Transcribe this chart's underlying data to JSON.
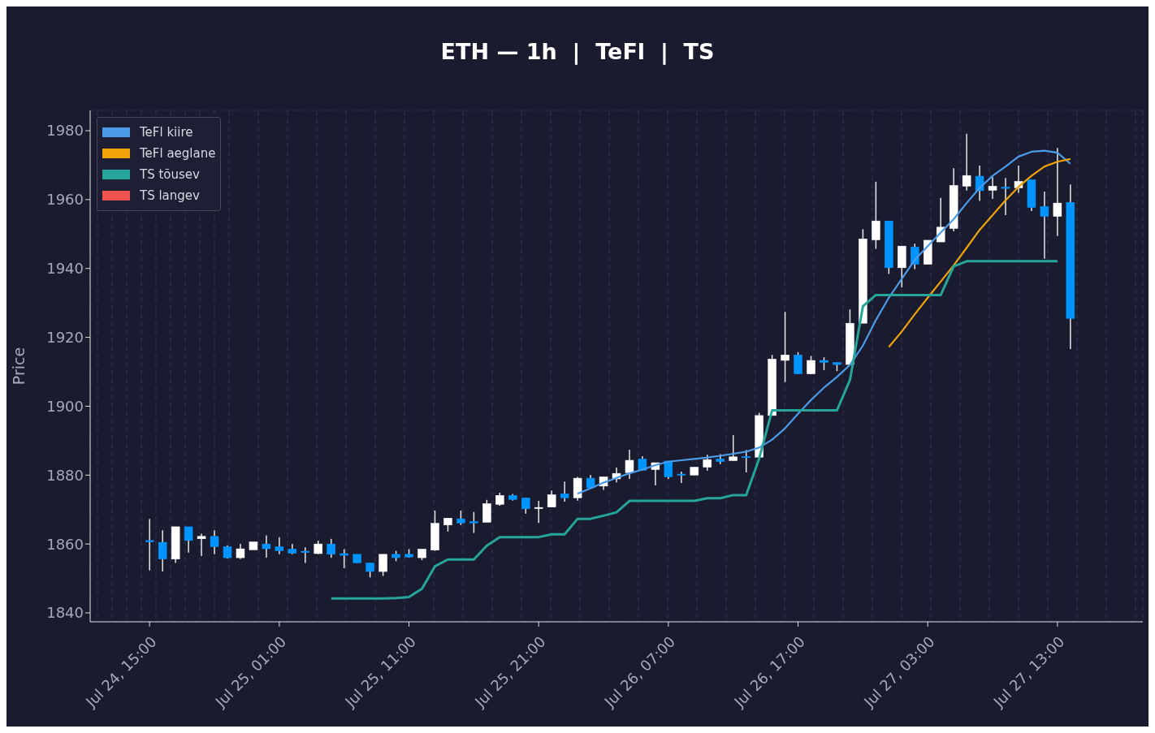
{
  "chart_data": {
    "type": "candlestick",
    "title": "ETH — 1h  |  TeFl  |  TS",
    "ylabel": "Price",
    "x": [
      "--07-24T15:00",
      "--07-24T16:00",
      "--07-24T17:00",
      "--07-24T18:00",
      "--07-24T19:00",
      "--07-24T20:00",
      "--07-24T21:00",
      "--07-24T22:00",
      "--07-24T23:00",
      "--07-25T00:00",
      "--07-25T01:00",
      "--07-25T02:00",
      "--07-25T03:00",
      "--07-25T04:00",
      "--07-25T05:00",
      "--07-25T06:00",
      "--07-25T07:00",
      "--07-25T08:00",
      "--07-25T09:00",
      "--07-25T10:00",
      "--07-25T11:00",
      "--07-25T12:00",
      "--07-25T13:00",
      "--07-25T14:00",
      "--07-25T15:00",
      "--07-25T16:00",
      "--07-25T17:00",
      "--07-25T18:00",
      "--07-25T19:00",
      "--07-25T20:00",
      "--07-25T21:00",
      "--07-25T22:00",
      "--07-25T23:00",
      "--07-26T00:00",
      "--07-26T01:00",
      "--07-26T02:00",
      "--07-26T03:00",
      "--07-26T04:00",
      "--07-26T05:00",
      "--07-26T06:00",
      "--07-26T07:00",
      "--07-26T08:00",
      "--07-26T09:00",
      "--07-26T10:00",
      "--07-26T11:00",
      "--07-26T12:00",
      "--07-26T13:00",
      "--07-26T14:00",
      "--07-26T15:00",
      "--07-26T16:00",
      "--07-26T17:00",
      "--07-26T18:00",
      "--07-26T19:00",
      "--07-26T20:00",
      "--07-26T21:00",
      "--07-26T22:00",
      "--07-26T23:00",
      "--07-27T00:00",
      "--07-27T01:00",
      "--07-27T02:00",
      "--07-27T03:00",
      "--07-27T04:00",
      "--07-27T05:00",
      "--07-27T06:00",
      "--07-27T07:00",
      "--07-27T08:00",
      "--07-27T09:00",
      "--07-27T10:00",
      "--07-27T11:00",
      "--07-27T12:00",
      "--07-27T13:00",
      "--07-27T14:00"
    ],
    "ohlc": [
      [
        1861,
        1867.3,
        1852.3,
        1860.6
      ],
      [
        1860.5,
        1864,
        1852,
        1855.6
      ],
      [
        1855.6,
        1865,
        1854.5,
        1865
      ],
      [
        1865,
        1865,
        1857.5,
        1861
      ],
      [
        1861.5,
        1863,
        1856.5,
        1862.2
      ],
      [
        1862.2,
        1864,
        1857,
        1859.2
      ],
      [
        1859.2,
        1859.6,
        1855.8,
        1856
      ],
      [
        1856,
        1860,
        1855.6,
        1858.6
      ],
      [
        1858.3,
        1860.6,
        1858.3,
        1860.6
      ],
      [
        1860,
        1862.5,
        1856,
        1858.6
      ],
      [
        1859.2,
        1862,
        1857,
        1858
      ],
      [
        1858.5,
        1860,
        1857,
        1857.3
      ],
      [
        1857.9,
        1859,
        1854.5,
        1857.5
      ],
      [
        1857.2,
        1861,
        1857,
        1860
      ],
      [
        1860,
        1861.5,
        1856,
        1857
      ],
      [
        1857.2,
        1858.5,
        1853,
        1856.7
      ],
      [
        1857,
        1857,
        1854.5,
        1854.5
      ],
      [
        1854.5,
        1854.5,
        1850.3,
        1852
      ],
      [
        1852,
        1857,
        1850.7,
        1857
      ],
      [
        1857,
        1858,
        1855,
        1856
      ],
      [
        1857,
        1858.5,
        1856,
        1856.2
      ],
      [
        1856,
        1858.5,
        1855.3,
        1858.5
      ],
      [
        1858.2,
        1869.7,
        1858,
        1866
      ],
      [
        1865.5,
        1867.5,
        1863.6,
        1867.5
      ],
      [
        1867.3,
        1869.7,
        1865.5,
        1866.1
      ],
      [
        1866.5,
        1869.3,
        1863.2,
        1866.1
      ],
      [
        1866.3,
        1872.8,
        1866.3,
        1871.7
      ],
      [
        1871.5,
        1874.9,
        1871.1,
        1874.1
      ],
      [
        1874.1,
        1874.5,
        1872.6,
        1872.9
      ],
      [
        1873.4,
        1873.4,
        1868.8,
        1870.2
      ],
      [
        1870.4,
        1872.5,
        1866.1,
        1870.6
      ],
      [
        1870.7,
        1875.5,
        1870.7,
        1874.3
      ],
      [
        1874.6,
        1878.1,
        1872.3,
        1873.4
      ],
      [
        1873.4,
        1879.5,
        1872.6,
        1879.1
      ],
      [
        1879.1,
        1880,
        1876.3,
        1876.3
      ],
      [
        1876.8,
        1879.5,
        1875.7,
        1879.5
      ],
      [
        1878.9,
        1882.2,
        1877.9,
        1880.5
      ],
      [
        1880.7,
        1887.4,
        1878.9,
        1884.3
      ],
      [
        1884.7,
        1885.5,
        1881.4,
        1881.4
      ],
      [
        1881.6,
        1883.6,
        1877,
        1883.6
      ],
      [
        1884.1,
        1884.1,
        1878.9,
        1879.5
      ],
      [
        1880.3,
        1881,
        1877.7,
        1880.1
      ],
      [
        1880,
        1882.3,
        1880,
        1882.3
      ],
      [
        1882.3,
        1885.9,
        1881.3,
        1884.5
      ],
      [
        1884.7,
        1886.1,
        1883.2,
        1883.9
      ],
      [
        1884.2,
        1891.6,
        1884.2,
        1885.3
      ],
      [
        1885.4,
        1887.3,
        1880.8,
        1885.2
      ],
      [
        1885.2,
        1898.1,
        1885.2,
        1897.3
      ],
      [
        1897.3,
        1914.9,
        1897.3,
        1913.7
      ],
      [
        1913.3,
        1927.4,
        1907,
        1914.9
      ],
      [
        1914.9,
        1915.7,
        1909.4,
        1909.4
      ],
      [
        1909.4,
        1914.6,
        1909.4,
        1913.3
      ],
      [
        1913.3,
        1914.2,
        1910.5,
        1912.7
      ],
      [
        1912.7,
        1912.7,
        1910.2,
        1912.1
      ],
      [
        1912.1,
        1928.1,
        1912.1,
        1924.1
      ],
      [
        1924.1,
        1951.4,
        1924.1,
        1948.6
      ],
      [
        1948.3,
        1965.2,
        1945.7,
        1953.8
      ],
      [
        1953.8,
        1953.8,
        1938.4,
        1940.2
      ],
      [
        1940.2,
        1946.5,
        1934.5,
        1946.5
      ],
      [
        1946.2,
        1947.2,
        1939.8,
        1941.2
      ],
      [
        1941.2,
        1948.2,
        1941.2,
        1948.2
      ],
      [
        1947.7,
        1960.5,
        1947.7,
        1952
      ],
      [
        1951.6,
        1969.1,
        1950.8,
        1964.1
      ],
      [
        1963.9,
        1979.1,
        1962.6,
        1967
      ],
      [
        1966.8,
        1969.9,
        1959.6,
        1962.6
      ],
      [
        1962.7,
        1966.5,
        1960.2,
        1963.9
      ],
      [
        1963.6,
        1966.3,
        1955.5,
        1963.4
      ],
      [
        1963.4,
        1969.9,
        1962,
        1965.3
      ],
      [
        1965.8,
        1965.8,
        1956.7,
        1957.7
      ],
      [
        1958,
        1962.3,
        1942.8,
        1955.1
      ],
      [
        1955.1,
        1975,
        1949.4,
        1959
      ],
      [
        1959.2,
        1964.4,
        1916.6,
        1925.5
      ]
    ],
    "colors": [
      "#0094ff",
      "#0094ff",
      "#ffffff",
      "#0094ff",
      "#ffffff",
      "#0094ff",
      "#0094ff",
      "#ffffff",
      "#ffffff",
      "#0094ff",
      "#0094ff",
      "#0094ff",
      "#0094ff",
      "#ffffff",
      "#0094ff",
      "#0094ff",
      "#0094ff",
      "#0094ff",
      "#ffffff",
      "#0094ff",
      "#0094ff",
      "#ffffff",
      "#ffffff",
      "#ffffff",
      "#0094ff",
      "#0094ff",
      "#ffffff",
      "#ffffff",
      "#0094ff",
      "#0094ff",
      "#ffffff",
      "#ffffff",
      "#0094ff",
      "#ffffff",
      "#0094ff",
      "#ffffff",
      "#ffffff",
      "#ffffff",
      "#0094ff",
      "#ffffff",
      "#0094ff",
      "#0094ff",
      "#ffffff",
      "#ffffff",
      "#0094ff",
      "#ffffff",
      "#0094ff",
      "#ffffff",
      "#ffffff",
      "#ffffff",
      "#0094ff",
      "#ffffff",
      "#0094ff",
      "#0094ff",
      "#ffffff",
      "#ffffff",
      "#ffffff",
      "#0094ff",
      "#ffffff",
      "#0094ff",
      "#ffffff",
      "#ffffff",
      "#ffffff",
      "#ffffff",
      "#0094ff",
      "#ffffff",
      "#0094ff",
      "#ffffff",
      "#0094ff",
      "#0094ff",
      "#ffffff",
      "#0094ff"
    ],
    "series": [
      {
        "type": "line",
        "name": "TeFl kiire",
        "color": "#4c9be8",
        "values": [
          null,
          null,
          null,
          null,
          null,
          null,
          null,
          null,
          null,
          null,
          null,
          null,
          null,
          null,
          null,
          null,
          null,
          null,
          null,
          null,
          null,
          null,
          null,
          null,
          null,
          null,
          null,
          null,
          null,
          null,
          null,
          null,
          null,
          1874.6,
          1876.2,
          1877.8,
          1879.2,
          1880.5,
          1881.6,
          1882.9,
          1883.9,
          1884.3,
          1884.7,
          1885.1,
          1885.6,
          1886.2,
          1886.8,
          1888,
          1890.3,
          1893.6,
          1897.8,
          1901.8,
          1905.4,
          1908.5,
          1912,
          1917.6,
          1925,
          1931.5,
          1937,
          1942.5,
          1946.5,
          1950.4,
          1954.3,
          1959,
          1963.4,
          1966.9,
          1969.6,
          1972.5,
          1973.9,
          1974.2,
          1973.6,
          1970.4
        ]
      },
      {
        "type": "line",
        "name": "TeFl aeglane",
        "color": "#f0a30a",
        "values": [
          null,
          null,
          null,
          null,
          null,
          null,
          null,
          null,
          null,
          null,
          null,
          null,
          null,
          null,
          null,
          null,
          null,
          null,
          null,
          null,
          null,
          null,
          null,
          null,
          null,
          null,
          null,
          null,
          null,
          null,
          null,
          null,
          null,
          null,
          null,
          null,
          null,
          null,
          null,
          null,
          null,
          null,
          null,
          null,
          null,
          null,
          null,
          null,
          null,
          null,
          null,
          null,
          null,
          null,
          null,
          null,
          null,
          1917.2,
          1921.7,
          1926.7,
          1931.5,
          1936.2,
          1940.9,
          1946,
          1951.2,
          1955.5,
          1959.8,
          1963.7,
          1966.9,
          1969.6,
          1971,
          1971.8
        ]
      },
      {
        "type": "line",
        "name": "TS tõusev",
        "color": "#26a69a",
        "values": [
          null,
          null,
          null,
          null,
          null,
          null,
          null,
          null,
          null,
          null,
          null,
          null,
          null,
          null,
          1844.2,
          1844.2,
          1844.2,
          1844.2,
          1844.2,
          1844.3,
          1844.6,
          1847,
          1853.5,
          1855.5,
          1855.5,
          1855.5,
          1859.5,
          1862,
          1862,
          1862,
          1862,
          1862.8,
          1862.8,
          1867.3,
          1867.3,
          1868.2,
          1869.2,
          1872.5,
          1872.5,
          1872.5,
          1872.5,
          1872.5,
          1872.5,
          1873.3,
          1873.3,
          1874.2,
          1874.2,
          1884.8,
          1898.8,
          1898.8,
          1898.8,
          1898.8,
          1898.8,
          1898.8,
          1907.6,
          1929,
          1932.3,
          1932.3,
          1932.3,
          1932.3,
          1932.3,
          1932.3,
          1940.6,
          1942.1,
          1942.1,
          1942.1,
          1942.1,
          1942.1,
          1942.1,
          1942.1,
          1942.1,
          null
        ]
      },
      {
        "type": "line",
        "name": "TS langev",
        "color": "#ef5350",
        "values": [
          null,
          null,
          null,
          null,
          null,
          null,
          null,
          null,
          null,
          null,
          null,
          null,
          null,
          null,
          null,
          null,
          null,
          null,
          null,
          null,
          null,
          null,
          null,
          null,
          null,
          null,
          null,
          null,
          null,
          null,
          null,
          null,
          null,
          null,
          null,
          null,
          null,
          null,
          null,
          null,
          null,
          null,
          null,
          null,
          null,
          null,
          null,
          null,
          null,
          null,
          null,
          null,
          null,
          null,
          null,
          null,
          null,
          null,
          null,
          null,
          null,
          null,
          null,
          null,
          null,
          null,
          null,
          null,
          null,
          null,
          null,
          null
        ]
      }
    ],
    "xlim": [
      "--07-24T10:25",
      "--07-27T19:35"
    ],
    "xticks": [
      {
        "value": "--07-24T15:00",
        "label": "Jul 24, 15:00"
      },
      {
        "value": "--07-25T01:00",
        "label": "Jul 25, 01:00"
      },
      {
        "value": "--07-25T11:00",
        "label": "Jul 25, 11:00"
      },
      {
        "value": "--07-25T21:00",
        "label": "Jul 25, 21:00"
      },
      {
        "value": "--07-26T07:00",
        "label": "Jul 26, 07:00"
      },
      {
        "value": "--07-26T17:00",
        "label": "Jul 26, 17:00"
      },
      {
        "value": "--07-27T03:00",
        "label": "Jul 27, 03:00"
      },
      {
        "value": "--07-27T13:00",
        "label": "Jul 27, 13:00"
      }
    ],
    "ylim": [
      1837.4,
      1985.9
    ],
    "yticks": [
      1840,
      1860,
      1880,
      1900,
      1920,
      1940,
      1960,
      1980
    ],
    "grid": true,
    "legend": "top left"
  }
}
